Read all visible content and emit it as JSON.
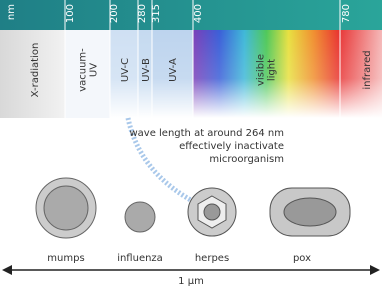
{
  "scale": {
    "ticks": [
      "nm",
      "100",
      "200",
      "280",
      "315",
      "400",
      "780"
    ]
  },
  "bands": [
    {
      "lines": [
        "X-radiation"
      ]
    },
    {
      "lines": [
        "vacuum-",
        "UV"
      ]
    },
    {
      "lines": [
        "UV-C"
      ]
    },
    {
      "lines": [
        "UV-B"
      ]
    },
    {
      "lines": [
        "UV-A"
      ]
    },
    {
      "lines": [
        "visible",
        "light"
      ]
    },
    {
      "lines": [
        "infrared"
      ]
    }
  ],
  "annotation": {
    "lines": [
      "wave length at around 264 nm",
      "effectively inactivate",
      "microorganism"
    ]
  },
  "viruses": [
    {
      "label": "mumps"
    },
    {
      "label": "influenza"
    },
    {
      "label": "herpes"
    },
    {
      "label": "pox"
    }
  ],
  "scale_bar": {
    "label": "1 μm"
  }
}
